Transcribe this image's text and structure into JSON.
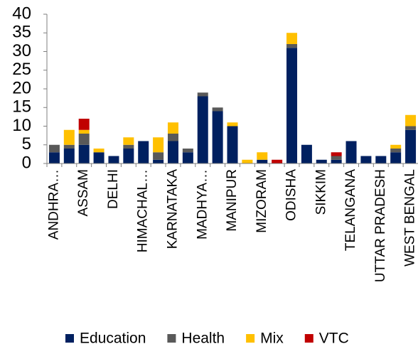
{
  "chart_data": {
    "type": "bar",
    "stacked": true,
    "categories": [
      "ANDHRA…",
      null,
      "ASSAM",
      null,
      "DELHI",
      null,
      "HIMACHAL…",
      null,
      "KARNATAKA",
      null,
      "MADHYA…",
      null,
      "MANIPUR",
      null,
      "MIZORAM",
      null,
      "ODISHA",
      null,
      "SIKKIM",
      null,
      "TELANGANA",
      null,
      "UTTAR PRADESH",
      null,
      "WEST BENGAL"
    ],
    "series": [
      {
        "name": "Education",
        "color": "#002060",
        "values": [
          3,
          4,
          5,
          3,
          2,
          4,
          6,
          1,
          6,
          3,
          18,
          14,
          10,
          0,
          1,
          0,
          31,
          5,
          1,
          1,
          6,
          2,
          2,
          3,
          9
        ]
      },
      {
        "name": "Health",
        "color": "#595959",
        "values": [
          2,
          1,
          3,
          0,
          0,
          1,
          0,
          2,
          2,
          1,
          1,
          1,
          0,
          0,
          0,
          0,
          1,
          0,
          0,
          1,
          0,
          0,
          0,
          1,
          1
        ]
      },
      {
        "name": "Mix",
        "color": "#ffc000",
        "values": [
          0,
          4,
          1,
          1,
          0,
          2,
          0,
          4,
          3,
          0,
          0,
          0,
          1,
          1,
          2,
          0,
          3,
          0,
          0,
          0,
          0,
          0,
          0,
          1,
          3
        ]
      },
      {
        "name": "VTC",
        "color": "#c00000",
        "values": [
          0,
          0,
          3,
          0,
          0,
          0,
          0,
          0,
          0,
          0,
          0,
          0,
          0,
          0,
          0,
          1,
          0,
          0,
          0,
          1,
          0,
          0,
          0,
          0,
          0
        ]
      }
    ],
    "ylim": [
      0,
      40
    ],
    "yticks": [
      0,
      5,
      10,
      15,
      20,
      25,
      30,
      35,
      40
    ],
    "grid": false,
    "legend": "bottom"
  }
}
